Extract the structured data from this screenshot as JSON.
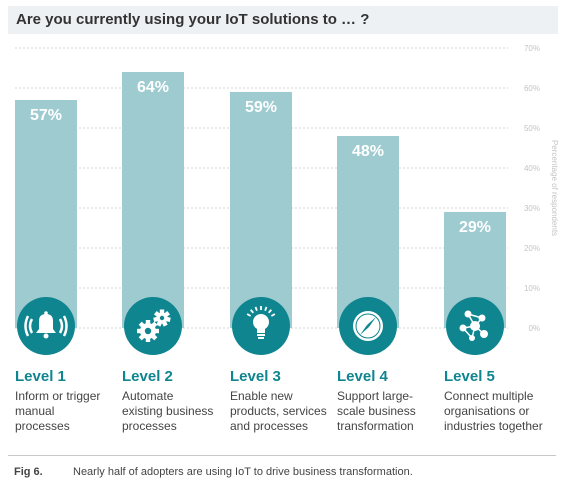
{
  "title": "Are you currently using your IoT solutions to … ?",
  "chart_data": {
    "type": "bar",
    "categories": [
      "Level 1",
      "Level 2",
      "Level 3",
      "Level 4",
      "Level 5"
    ],
    "descriptions": [
      [
        "Inform or trigger",
        "manual",
        "processes"
      ],
      [
        "Automate",
        "existing business",
        "processes"
      ],
      [
        "Enable new",
        "products, services",
        "and processes"
      ],
      [
        "Support large-",
        "scale business",
        "transformation"
      ],
      [
        "Connect multiple",
        "organisations or",
        "industries together"
      ]
    ],
    "values": [
      57,
      64,
      59,
      48,
      29
    ],
    "value_labels": [
      "57%",
      "64%",
      "59%",
      "48%",
      "29%"
    ],
    "icons": [
      "bell-ringing-icon",
      "gears-icon",
      "lightbulb-icon",
      "compass-icon",
      "network-icon"
    ],
    "ylabel": "Percentage of respondents",
    "yticks": [
      "0%",
      "10%",
      "20%",
      "30%",
      "40%",
      "50%",
      "60%",
      "70%"
    ],
    "ylim": [
      0,
      70
    ],
    "grid": true,
    "bar_color": "#9ecbd0",
    "icon_color": "#0f8590"
  },
  "figure": {
    "label": "Fig 6.",
    "caption": "Nearly half of adopters are using IoT to drive business transformation."
  }
}
